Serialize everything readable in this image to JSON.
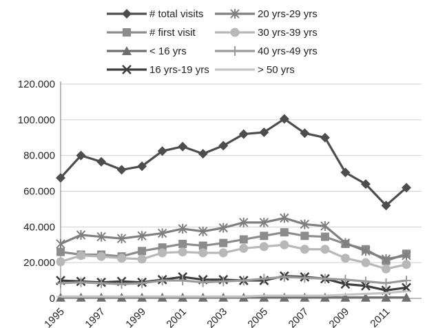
{
  "chart_data": {
    "type": "line",
    "title": "",
    "xlabel": "",
    "ylabel": "",
    "ylim": [
      0,
      120000
    ],
    "y_ticks": [
      0,
      20000,
      40000,
      60000,
      80000,
      100000,
      120000
    ],
    "y_tick_labels": [
      "0",
      "20.000",
      "40.000",
      "60.000",
      "80.000",
      "100.000",
      "120.000"
    ],
    "x": [
      1995,
      1996,
      1997,
      1998,
      1999,
      2000,
      2001,
      2002,
      2003,
      2004,
      2005,
      2006,
      2007,
      2008,
      2009,
      2010,
      2011,
      2012
    ],
    "x_tick_labels": [
      "1995",
      "1997",
      "1999",
      "2001",
      "2003",
      "2005",
      "2007",
      "2009",
      "2011"
    ],
    "grid": "horizontal",
    "legend_position": "top",
    "series": [
      {
        "name": "# total visits",
        "marker": "diamond",
        "color": "#4d4d4d",
        "values": [
          67500,
          80000,
          76500,
          72000,
          74000,
          82500,
          85000,
          81000,
          85500,
          92000,
          93000,
          100500,
          92500,
          90000,
          70500,
          64000,
          52000,
          62000
        ]
      },
      {
        "name": "# first visit",
        "marker": "square",
        "color": "#8c8c8c",
        "values": [
          26000,
          24500,
          24500,
          23500,
          26500,
          28500,
          30500,
          29500,
          31000,
          33000,
          35000,
          37000,
          35000,
          34500,
          30500,
          27500,
          21000,
          25000
        ]
      },
      {
        "name": "< 16 yrs",
        "marker": "triangle",
        "color": "#6e6e6e",
        "values": [
          500,
          500,
          500,
          500,
          500,
          500,
          500,
          500,
          500,
          500,
          500,
          500,
          500,
          500,
          500,
          500,
          500,
          500
        ]
      },
      {
        "name": "16 yrs-19 yrs",
        "marker": "x",
        "color": "#3c3c3c",
        "values": [
          10000,
          9500,
          9000,
          9500,
          9000,
          10500,
          12000,
          10500,
          10500,
          10000,
          10000,
          12500,
          12000,
          11000,
          8000,
          7000,
          4500,
          6000
        ]
      },
      {
        "name": "20 yrs-29 yrs",
        "marker": "asterisk",
        "color": "#7f7f7f",
        "values": [
          30500,
          35500,
          34500,
          33500,
          35000,
          36500,
          39000,
          37500,
          39500,
          42500,
          42500,
          45000,
          41500,
          40500,
          31000,
          26500,
          22000,
          24000
        ]
      },
      {
        "name": "30 yrs-39 yrs",
        "marker": "circle",
        "color": "#b8b8b8",
        "values": [
          20500,
          24000,
          23500,
          22500,
          22000,
          25500,
          26000,
          25500,
          25500,
          28000,
          29000,
          30000,
          27500,
          27500,
          22500,
          20000,
          16500,
          19000
        ]
      },
      {
        "name": "40 yrs-49 yrs",
        "marker": "plus",
        "color": "#9a9a9a",
        "values": [
          8500,
          9000,
          8500,
          8000,
          8500,
          10000,
          10000,
          9000,
          9500,
          10000,
          11000,
          12000,
          11500,
          11000,
          10500,
          9500,
          8500,
          10000
        ]
      },
      {
        "name": "> 50 yrs",
        "marker": "dash",
        "color": "#c4c4c4",
        "values": [
          1000,
          1000,
          1000,
          1000,
          1000,
          1000,
          1000,
          1000,
          1000,
          1000,
          1500,
          1500,
          1500,
          1500,
          2000,
          2500,
          3000,
          4000
        ]
      }
    ]
  }
}
